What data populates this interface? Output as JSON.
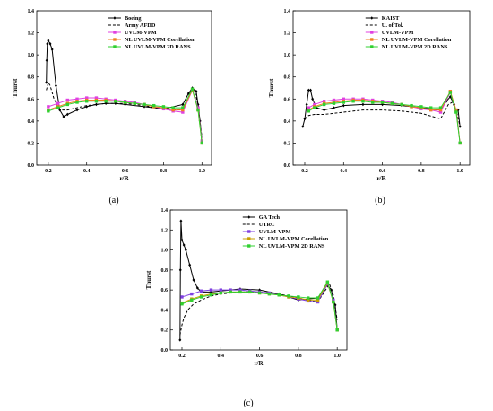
{
  "chart_data": [
    {
      "type": "line",
      "panel_label": "(a)",
      "xlabel": "r/R",
      "ylabel": "Thurst",
      "xlim": [
        0.14,
        1.05
      ],
      "ylim": [
        0.0,
        1.4
      ],
      "xticks": [
        "0.2",
        "0.4",
        "0.6",
        "0.8",
        "1.0"
      ],
      "yticks": [
        "0.0",
        "0.2",
        "0.4",
        "0.6",
        "0.8",
        "1.0",
        "1.2",
        "1.4"
      ],
      "legend_position": "top-right",
      "series": [
        {
          "name": "Boeing",
          "color": "#000000",
          "dash": "solid",
          "marker": "diamond",
          "x": [
            0.19,
            0.192,
            0.195,
            0.2,
            0.21,
            0.22,
            0.24,
            0.26,
            0.28,
            0.3,
            0.35,
            0.4,
            0.45,
            0.5,
            0.55,
            0.6,
            0.7,
            0.8,
            0.9,
            0.93,
            0.95,
            0.97,
            0.98,
            0.99,
            1.0
          ],
          "y": [
            0.75,
            0.95,
            1.1,
            1.13,
            1.1,
            1.05,
            0.72,
            0.5,
            0.44,
            0.46,
            0.5,
            0.53,
            0.55,
            0.56,
            0.56,
            0.55,
            0.53,
            0.51,
            0.55,
            0.65,
            0.7,
            0.67,
            0.55,
            0.4,
            0.2
          ]
        },
        {
          "name": "Army AFDD",
          "color": "#000000",
          "dash": "dashed",
          "marker": "none",
          "x": [
            0.19,
            0.2,
            0.21,
            0.23,
            0.26,
            0.3,
            0.4,
            0.5,
            0.6,
            0.7,
            0.8,
            0.9,
            0.94,
            0.96,
            0.98,
            1.0
          ],
          "y": [
            0.68,
            0.75,
            0.72,
            0.6,
            0.5,
            0.5,
            0.54,
            0.56,
            0.56,
            0.54,
            0.51,
            0.5,
            0.66,
            0.68,
            0.55,
            0.25
          ]
        },
        {
          "name": "UVLM-VPM",
          "color": "#e040e0",
          "dash": "solid",
          "marker": "square",
          "x": [
            0.2,
            0.25,
            0.3,
            0.35,
            0.4,
            0.45,
            0.5,
            0.55,
            0.6,
            0.65,
            0.7,
            0.75,
            0.8,
            0.85,
            0.9,
            0.95,
            0.98,
            1.0
          ],
          "y": [
            0.53,
            0.56,
            0.59,
            0.6,
            0.61,
            0.61,
            0.6,
            0.59,
            0.58,
            0.57,
            0.55,
            0.53,
            0.51,
            0.49,
            0.48,
            0.68,
            0.52,
            0.22
          ]
        },
        {
          "name": "NL UVLM-VPM Corellation",
          "color": "#f08020",
          "dash": "solid",
          "marker": "square",
          "x": [
            0.2,
            0.25,
            0.3,
            0.35,
            0.4,
            0.45,
            0.5,
            0.55,
            0.6,
            0.65,
            0.7,
            0.75,
            0.8,
            0.85,
            0.9,
            0.95,
            0.98,
            1.0
          ],
          "y": [
            0.5,
            0.53,
            0.56,
            0.58,
            0.59,
            0.59,
            0.59,
            0.58,
            0.57,
            0.56,
            0.55,
            0.53,
            0.52,
            0.5,
            0.5,
            0.68,
            0.5,
            0.2
          ]
        },
        {
          "name": "NL UVLM-VPM 2D RANS",
          "color": "#30d030",
          "dash": "solid",
          "marker": "square",
          "x": [
            0.2,
            0.25,
            0.3,
            0.35,
            0.4,
            0.45,
            0.5,
            0.55,
            0.6,
            0.65,
            0.7,
            0.75,
            0.8,
            0.85,
            0.9,
            0.95,
            0.98,
            1.0
          ],
          "y": [
            0.49,
            0.52,
            0.55,
            0.57,
            0.58,
            0.58,
            0.58,
            0.58,
            0.57,
            0.56,
            0.55,
            0.54,
            0.53,
            0.52,
            0.52,
            0.69,
            0.5,
            0.2
          ]
        }
      ]
    },
    {
      "type": "line",
      "panel_label": "(b)",
      "xlabel": "r/R",
      "ylabel": "Thurst",
      "xlim": [
        0.14,
        1.05
      ],
      "ylim": [
        0.0,
        1.4
      ],
      "xticks": [
        "0.2",
        "0.4",
        "0.6",
        "0.8",
        "1.0"
      ],
      "yticks": [
        "0.0",
        "0.2",
        "0.4",
        "0.6",
        "0.8",
        "1.0",
        "1.2",
        "1.4"
      ],
      "legend_position": "top-right",
      "series": [
        {
          "name": "KAIST",
          "color": "#000000",
          "dash": "solid",
          "marker": "diamond",
          "x": [
            0.19,
            0.2,
            0.21,
            0.22,
            0.23,
            0.24,
            0.26,
            0.3,
            0.35,
            0.4,
            0.5,
            0.6,
            0.7,
            0.8,
            0.9,
            0.93,
            0.95,
            0.97,
            0.98,
            0.99,
            1.0
          ],
          "y": [
            0.35,
            0.42,
            0.55,
            0.68,
            0.68,
            0.6,
            0.52,
            0.5,
            0.52,
            0.54,
            0.55,
            0.55,
            0.54,
            0.52,
            0.5,
            0.58,
            0.62,
            0.55,
            0.48,
            0.5,
            0.35
          ]
        },
        {
          "name": "U. of Tol.",
          "color": "#000000",
          "dash": "dashed",
          "marker": "none",
          "x": [
            0.2,
            0.22,
            0.25,
            0.3,
            0.35,
            0.4,
            0.5,
            0.6,
            0.7,
            0.8,
            0.9,
            0.94,
            0.96,
            0.98,
            1.0
          ],
          "y": [
            0.42,
            0.45,
            0.46,
            0.46,
            0.47,
            0.48,
            0.5,
            0.5,
            0.49,
            0.47,
            0.42,
            0.55,
            0.57,
            0.5,
            0.35
          ]
        },
        {
          "name": "UVLM-VPM",
          "color": "#e040e0",
          "dash": "solid",
          "marker": "square",
          "x": [
            0.22,
            0.25,
            0.3,
            0.35,
            0.4,
            0.45,
            0.5,
            0.55,
            0.6,
            0.65,
            0.7,
            0.75,
            0.8,
            0.85,
            0.9,
            0.95,
            0.98,
            1.0
          ],
          "y": [
            0.52,
            0.55,
            0.58,
            0.59,
            0.6,
            0.6,
            0.6,
            0.59,
            0.58,
            0.57,
            0.55,
            0.53,
            0.51,
            0.5,
            0.48,
            0.66,
            0.5,
            0.2
          ]
        },
        {
          "name": "NL UVLM-VPM Corellation",
          "color": "#f08020",
          "dash": "solid",
          "marker": "square",
          "x": [
            0.22,
            0.25,
            0.3,
            0.35,
            0.4,
            0.45,
            0.5,
            0.55,
            0.6,
            0.65,
            0.7,
            0.75,
            0.8,
            0.85,
            0.9,
            0.95,
            0.98,
            1.0
          ],
          "y": [
            0.5,
            0.53,
            0.56,
            0.57,
            0.58,
            0.59,
            0.59,
            0.58,
            0.57,
            0.56,
            0.55,
            0.53,
            0.52,
            0.5,
            0.5,
            0.67,
            0.5,
            0.2
          ]
        },
        {
          "name": "NL UVLM-VPM 2D RANS",
          "color": "#30d030",
          "dash": "solid",
          "marker": "square",
          "x": [
            0.22,
            0.25,
            0.3,
            0.35,
            0.4,
            0.45,
            0.5,
            0.55,
            0.6,
            0.65,
            0.7,
            0.75,
            0.8,
            0.85,
            0.9,
            0.95,
            0.98,
            1.0
          ],
          "y": [
            0.49,
            0.52,
            0.55,
            0.56,
            0.57,
            0.58,
            0.58,
            0.57,
            0.57,
            0.56,
            0.55,
            0.54,
            0.53,
            0.52,
            0.52,
            0.66,
            0.48,
            0.2
          ]
        }
      ]
    },
    {
      "type": "line",
      "panel_label": "(c)",
      "xlabel": "r/R",
      "ylabel": "Thurst",
      "xlim": [
        0.14,
        1.05
      ],
      "ylim": [
        0.0,
        1.4
      ],
      "xticks": [
        "0.2",
        "0.4",
        "0.6",
        "0.8",
        "1.0"
      ],
      "yticks": [
        "0.0",
        "0.2",
        "0.4",
        "0.6",
        "0.8",
        "1.0",
        "1.2",
        "1.4"
      ],
      "legend_position": "top-right",
      "series": [
        {
          "name": "GA Tech",
          "color": "#000000",
          "dash": "solid",
          "marker": "diamond",
          "x": [
            0.19,
            0.192,
            0.195,
            0.2,
            0.21,
            0.22,
            0.24,
            0.26,
            0.28,
            0.3,
            0.35,
            0.4,
            0.5,
            0.6,
            0.7,
            0.8,
            0.9,
            0.93,
            0.95,
            0.97,
            0.98,
            0.99,
            1.0
          ],
          "y": [
            0.1,
            0.8,
            1.29,
            1.1,
            1.05,
            1.0,
            0.85,
            0.7,
            0.62,
            0.58,
            0.58,
            0.59,
            0.61,
            0.6,
            0.56,
            0.5,
            0.52,
            0.6,
            0.65,
            0.6,
            0.5,
            0.45,
            0.2
          ]
        },
        {
          "name": "UTRC",
          "color": "#000000",
          "dash": "dashed",
          "marker": "none",
          "x": [
            0.19,
            0.2,
            0.21,
            0.23,
            0.26,
            0.3,
            0.35,
            0.4,
            0.5,
            0.6,
            0.7,
            0.8,
            0.9,
            0.94,
            0.96,
            0.98,
            1.0
          ],
          "y": [
            0.15,
            0.25,
            0.32,
            0.4,
            0.46,
            0.5,
            0.54,
            0.56,
            0.58,
            0.58,
            0.56,
            0.52,
            0.48,
            0.6,
            0.66,
            0.55,
            0.3
          ]
        },
        {
          "name": "UVLM-VPM",
          "color": "#8040e0",
          "dash": "solid",
          "marker": "square",
          "x": [
            0.2,
            0.25,
            0.3,
            0.35,
            0.4,
            0.45,
            0.5,
            0.55,
            0.6,
            0.65,
            0.7,
            0.75,
            0.8,
            0.85,
            0.9,
            0.95,
            0.98,
            1.0
          ],
          "y": [
            0.53,
            0.56,
            0.59,
            0.6,
            0.6,
            0.6,
            0.6,
            0.59,
            0.58,
            0.57,
            0.55,
            0.53,
            0.51,
            0.49,
            0.48,
            0.66,
            0.5,
            0.2
          ]
        },
        {
          "name": "NL UVLM-VPM Corellation",
          "color": "#c8a000",
          "dash": "solid",
          "marker": "square",
          "x": [
            0.2,
            0.25,
            0.3,
            0.35,
            0.4,
            0.45,
            0.5,
            0.55,
            0.6,
            0.65,
            0.7,
            0.75,
            0.8,
            0.85,
            0.9,
            0.95,
            0.98,
            1.0
          ],
          "y": [
            0.47,
            0.51,
            0.54,
            0.56,
            0.57,
            0.58,
            0.58,
            0.58,
            0.57,
            0.56,
            0.55,
            0.53,
            0.52,
            0.5,
            0.5,
            0.67,
            0.48,
            0.2
          ]
        },
        {
          "name": "NL UVLM-VPM 2D RANS",
          "color": "#30d030",
          "dash": "solid",
          "marker": "square",
          "x": [
            0.2,
            0.25,
            0.3,
            0.35,
            0.4,
            0.45,
            0.5,
            0.55,
            0.6,
            0.65,
            0.7,
            0.75,
            0.8,
            0.85,
            0.9,
            0.95,
            0.98,
            1.0
          ],
          "y": [
            0.46,
            0.5,
            0.53,
            0.55,
            0.57,
            0.58,
            0.58,
            0.58,
            0.57,
            0.56,
            0.55,
            0.54,
            0.53,
            0.52,
            0.52,
            0.68,
            0.48,
            0.2
          ]
        }
      ]
    }
  ]
}
